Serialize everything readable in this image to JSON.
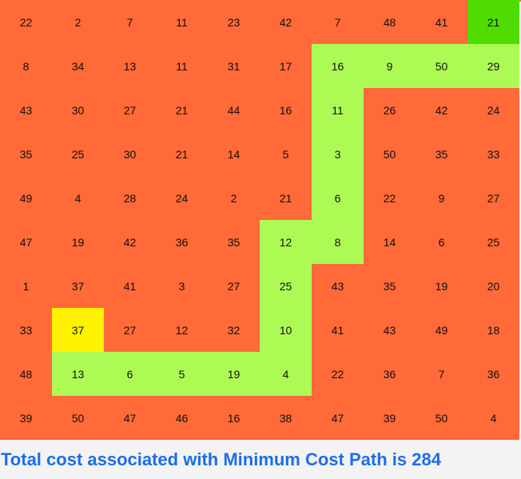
{
  "colors": {
    "cell": "#ff6a38",
    "path": "#adfa55",
    "start": "#fff200",
    "end": "#50dc00",
    "result_text": "#1c6ee8",
    "background": "#f3f3f3"
  },
  "grid": {
    "rows": [
      [
        22,
        2,
        7,
        11,
        23,
        42,
        7,
        48,
        41,
        21
      ],
      [
        8,
        34,
        13,
        11,
        31,
        17,
        16,
        9,
        50,
        29
      ],
      [
        43,
        30,
        27,
        21,
        44,
        16,
        11,
        26,
        42,
        24
      ],
      [
        35,
        25,
        30,
        21,
        14,
        5,
        3,
        50,
        35,
        33
      ],
      [
        49,
        4,
        28,
        24,
        2,
        21,
        6,
        22,
        9,
        27
      ],
      [
        47,
        19,
        42,
        36,
        35,
        12,
        8,
        14,
        6,
        25
      ],
      [
        1,
        37,
        41,
        3,
        27,
        25,
        43,
        35,
        19,
        20
      ],
      [
        33,
        37,
        27,
        12,
        32,
        10,
        41,
        43,
        49,
        18
      ],
      [
        48,
        13,
        6,
        5,
        19,
        4,
        22,
        36,
        7,
        36
      ],
      [
        39,
        50,
        47,
        46,
        16,
        38,
        47,
        39,
        50,
        4
      ]
    ],
    "start": [
      7,
      1
    ],
    "end": [
      0,
      9
    ],
    "path": [
      [
        8,
        1
      ],
      [
        8,
        2
      ],
      [
        8,
        3
      ],
      [
        8,
        4
      ],
      [
        8,
        5
      ],
      [
        7,
        5
      ],
      [
        6,
        5
      ],
      [
        5,
        5
      ],
      [
        5,
        6
      ],
      [
        4,
        6
      ],
      [
        3,
        6
      ],
      [
        2,
        6
      ],
      [
        1,
        6
      ],
      [
        1,
        7
      ],
      [
        1,
        8
      ],
      [
        1,
        9
      ]
    ]
  },
  "result": {
    "text": "Total cost associated with Minimum Cost Path is 284"
  }
}
